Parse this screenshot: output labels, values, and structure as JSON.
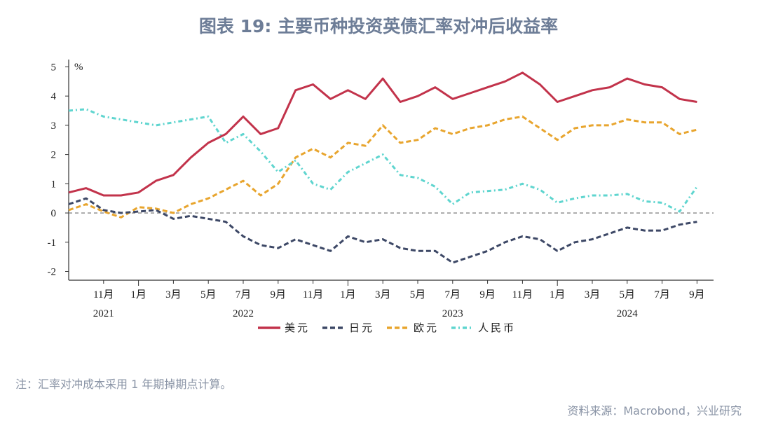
{
  "title": "图表 19: 主要币种投资英债汇率对冲后收益率",
  "note": "注：汇率对冲成本采用 1 年期掉期点计算。",
  "source": "资料来源：Macrobond，兴业研究",
  "chart_data": {
    "type": "line",
    "title": "图表 19: 主要币种投资英债汇率对冲后收益率",
    "ylabel": "%",
    "ylim": [
      -2.3,
      5.25
    ],
    "xlim": [
      "2021-09",
      "2024-10"
    ],
    "yticks": [
      "5",
      "4",
      "3",
      "2",
      "1",
      "0",
      "-1",
      "-2"
    ],
    "ytick_values": [
      5,
      4,
      3,
      2,
      1,
      0,
      -1,
      -2
    ],
    "xticks": [
      {
        "date": "2021-11",
        "label": "11月"
      },
      {
        "date": "2022-01",
        "label": "1月"
      },
      {
        "date": "2022-03",
        "label": "3月"
      },
      {
        "date": "2022-05",
        "label": "5月"
      },
      {
        "date": "2022-07",
        "label": "7月"
      },
      {
        "date": "2022-09",
        "label": "9月"
      },
      {
        "date": "2022-11",
        "label": "11月"
      },
      {
        "date": "2023-01",
        "label": "1月"
      },
      {
        "date": "2023-03",
        "label": "3月"
      },
      {
        "date": "2023-05",
        "label": "5月"
      },
      {
        "date": "2023-07",
        "label": "7月"
      },
      {
        "date": "2023-09",
        "label": "9月"
      },
      {
        "date": "2023-11",
        "label": "11月"
      },
      {
        "date": "2024-01",
        "label": "1月"
      },
      {
        "date": "2024-03",
        "label": "3月"
      },
      {
        "date": "2024-05",
        "label": "5月"
      },
      {
        "date": "2024-07",
        "label": "7月"
      },
      {
        "date": "2024-09",
        "label": "9月"
      }
    ],
    "year_labels": [
      {
        "date": "2021-11",
        "label": "2021"
      },
      {
        "date": "2022-07",
        "label": "2022"
      },
      {
        "date": "2023-07",
        "label": "2023"
      },
      {
        "date": "2024-05",
        "label": "2024"
      }
    ],
    "zero_line": true,
    "grid": false,
    "legend_position": "bottom",
    "x": [
      "2021-09",
      "2021-10",
      "2021-11",
      "2021-12",
      "2022-01",
      "2022-02",
      "2022-03",
      "2022-04",
      "2022-05",
      "2022-06",
      "2022-07",
      "2022-08",
      "2022-09",
      "2022-10",
      "2022-11",
      "2022-12",
      "2023-01",
      "2023-02",
      "2023-03",
      "2023-04",
      "2023-05",
      "2023-06",
      "2023-07",
      "2023-08",
      "2023-09",
      "2023-10",
      "2023-11",
      "2023-12",
      "2024-01",
      "2024-02",
      "2024-03",
      "2024-04",
      "2024-05",
      "2024-06",
      "2024-07",
      "2024-08",
      "2024-09"
    ],
    "series": [
      {
        "name": "美元",
        "color": "#c2334b",
        "style": "solid",
        "values": [
          0.7,
          0.85,
          0.6,
          0.6,
          0.7,
          1.1,
          1.3,
          1.9,
          2.4,
          2.7,
          3.3,
          2.7,
          2.9,
          4.2,
          4.4,
          3.9,
          4.2,
          3.9,
          4.6,
          3.8,
          4.0,
          4.3,
          3.9,
          4.1,
          4.3,
          4.5,
          4.8,
          4.4,
          3.8,
          4.0,
          4.2,
          4.3,
          4.6,
          4.4,
          4.3,
          3.9,
          3.8
        ]
      },
      {
        "name": "日元",
        "color": "#3d4866",
        "style": "dashed",
        "values": [
          0.3,
          0.5,
          0.1,
          0.0,
          0.05,
          0.1,
          -0.2,
          -0.1,
          -0.2,
          -0.3,
          -0.8,
          -1.1,
          -1.2,
          -0.9,
          -1.1,
          -1.3,
          -0.8,
          -1.0,
          -0.9,
          -1.2,
          -1.3,
          -1.3,
          -1.7,
          -1.5,
          -1.3,
          -1.0,
          -0.8,
          -0.9,
          -1.3,
          -1.0,
          -0.9,
          -0.7,
          -0.5,
          -0.6,
          -0.6,
          -0.4,
          -0.3
        ]
      },
      {
        "name": "欧元",
        "color": "#e8a52e",
        "style": "dashed",
        "values": [
          0.1,
          0.3,
          0.05,
          -0.15,
          0.2,
          0.15,
          0.0,
          0.3,
          0.5,
          0.8,
          1.1,
          0.6,
          1.0,
          1.9,
          2.2,
          1.9,
          2.4,
          2.3,
          3.0,
          2.4,
          2.5,
          2.9,
          2.7,
          2.9,
          3.0,
          3.2,
          3.3,
          2.9,
          2.5,
          2.9,
          3.0,
          3.0,
          3.2,
          3.1,
          3.1,
          2.7,
          2.85
        ]
      },
      {
        "name": "人民币",
        "color": "#5fd5cf",
        "style": "dashdot",
        "values": [
          3.5,
          3.55,
          3.3,
          3.2,
          3.1,
          3.0,
          3.1,
          3.2,
          3.3,
          2.4,
          2.7,
          2.1,
          1.4,
          1.8,
          1.0,
          0.8,
          1.4,
          1.7,
          2.0,
          1.3,
          1.2,
          0.9,
          0.3,
          0.7,
          0.75,
          0.8,
          1.0,
          0.8,
          0.35,
          0.5,
          0.6,
          0.6,
          0.65,
          0.4,
          0.35,
          0.05,
          0.9
        ]
      }
    ]
  }
}
